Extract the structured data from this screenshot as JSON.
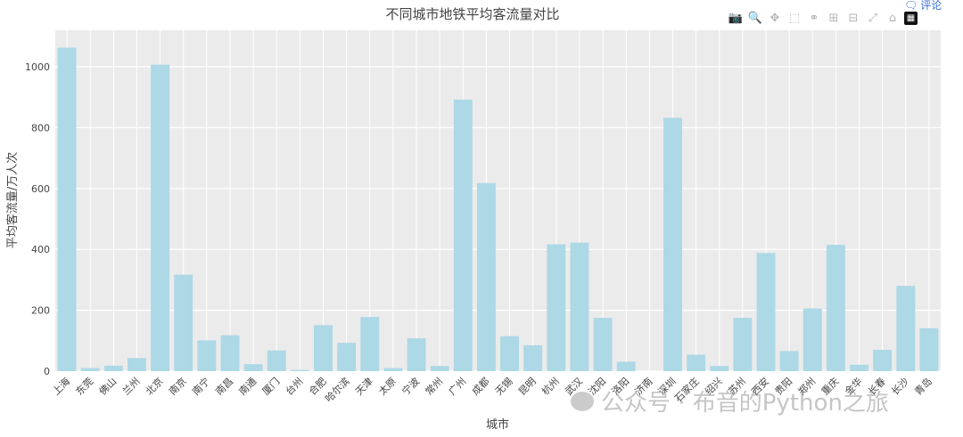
{
  "chart_data": {
    "type": "bar",
    "title": "不同城市地铁平均客流量对比",
    "xlabel": "城市",
    "ylabel": "平均客流量/万人次",
    "ylim": [
      0,
      1120
    ],
    "yticks": [
      0,
      200,
      400,
      600,
      800,
      1000
    ],
    "grid": true,
    "bar_color": "#add8e6",
    "categories": [
      "上海",
      "东莞",
      "佛山",
      "兰州",
      "北京",
      "南京",
      "南宁",
      "南昌",
      "南通",
      "厦门",
      "台州",
      "合肥",
      "哈尔滨",
      "天津",
      "太原",
      "宁波",
      "常州",
      "广州",
      "成都",
      "无锡",
      "昆明",
      "杭州",
      "武汉",
      "沈阳",
      "洛阳",
      "济南",
      "深圳",
      "石家庄",
      "绍兴",
      "苏州",
      "西安",
      "贵阳",
      "郑州",
      "重庆",
      "金华",
      "长春",
      "长沙",
      "青岛"
    ],
    "values": [
      1063,
      10,
      18,
      43,
      1007,
      317,
      101,
      118,
      23,
      68,
      4,
      151,
      93,
      178,
      10,
      108,
      17,
      892,
      618,
      115,
      85,
      417,
      422,
      175,
      31,
      0,
      832,
      54,
      17,
      175,
      388,
      66,
      206,
      415,
      21,
      70,
      280,
      141
    ]
  },
  "toolbar": {
    "icons": [
      "camera-icon",
      "zoom-icon",
      "pan-icon",
      "box-select-icon",
      "lasso-icon",
      "zoom-in-icon",
      "zoom-out-icon",
      "autoscale-icon",
      "home-icon",
      "plotly-logo-icon"
    ]
  },
  "comment_link": {
    "label": "评论"
  },
  "watermark": {
    "text": "公众号 · 布音的Python之旅"
  }
}
